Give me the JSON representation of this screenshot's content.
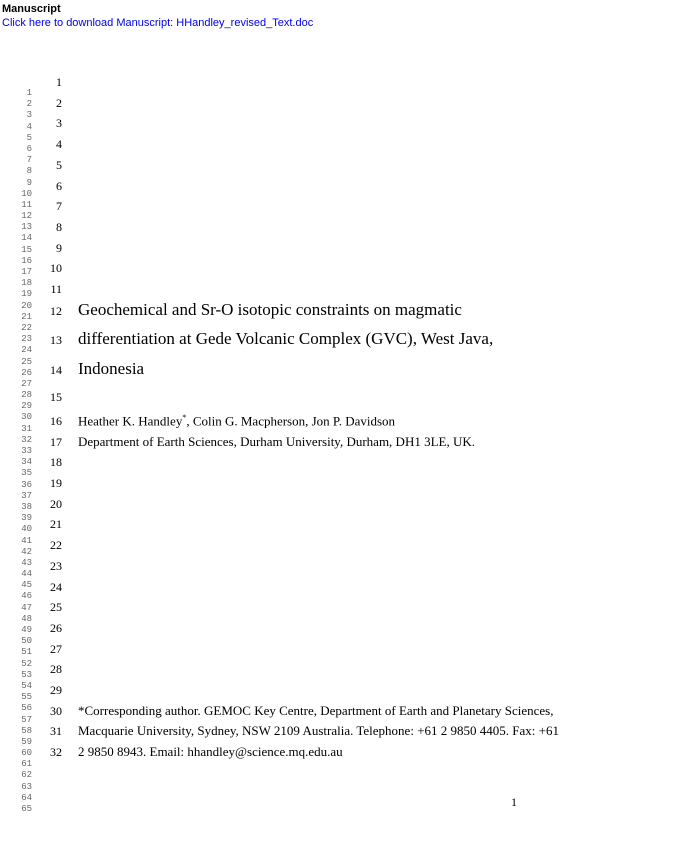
{
  "header": {
    "label": "Manuscript",
    "download_link": "Click here to download Manuscript: HHandley_revised_Text.doc"
  },
  "margin_lines": {
    "start": 1,
    "end": 65
  },
  "content": {
    "lines": [
      {
        "n": 1,
        "text": ""
      },
      {
        "n": 2,
        "text": ""
      },
      {
        "n": 3,
        "text": ""
      },
      {
        "n": 4,
        "text": ""
      },
      {
        "n": 5,
        "text": ""
      },
      {
        "n": 6,
        "text": ""
      },
      {
        "n": 7,
        "text": ""
      },
      {
        "n": 8,
        "text": ""
      },
      {
        "n": 9,
        "text": ""
      },
      {
        "n": 10,
        "text": ""
      },
      {
        "n": 11,
        "text": ""
      },
      {
        "n": 12,
        "text": "Geochemical and Sr-O isotopic constraints on magmatic",
        "title": true
      },
      {
        "n": 13,
        "text": "differentiation at Gede Volcanic Complex (GVC), West Java,",
        "title": true,
        "spacer_before": 8
      },
      {
        "n": 14,
        "text": "Indonesia",
        "title": true,
        "spacer_before": 8
      },
      {
        "n": 15,
        "text": "",
        "spacer_before": 6
      },
      {
        "n": 16,
        "text": "Heather K. Handley*, Colin G. Macpherson, Jon P. Davidson",
        "authors": true
      },
      {
        "n": 17,
        "text": "Department of Earth Sciences, Durham University, Durham, DH1 3LE, UK."
      },
      {
        "n": 18,
        "text": ""
      },
      {
        "n": 19,
        "text": ""
      },
      {
        "n": 20,
        "text": ""
      },
      {
        "n": 21,
        "text": ""
      },
      {
        "n": 22,
        "text": ""
      },
      {
        "n": 23,
        "text": ""
      },
      {
        "n": 24,
        "text": ""
      },
      {
        "n": 25,
        "text": ""
      },
      {
        "n": 26,
        "text": ""
      },
      {
        "n": 27,
        "text": ""
      },
      {
        "n": 28,
        "text": ""
      },
      {
        "n": 29,
        "text": ""
      },
      {
        "n": 30,
        "text": "*Corresponding author. GEMOC Key Centre, Department of Earth and Planetary Sciences,"
      },
      {
        "n": 31,
        "text": "Macquarie University, Sydney, NSW 2109 Australia. Telephone: +61 2 9850 4405. Fax: +61"
      },
      {
        "n": 32,
        "text": "2 9850 8943. Email: hhandley@science.mq.edu.au"
      }
    ]
  },
  "page_number": "1"
}
